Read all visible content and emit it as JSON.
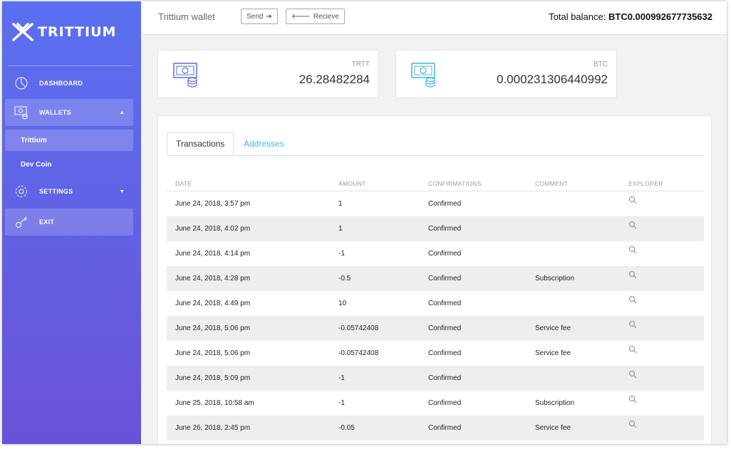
{
  "app": {
    "logo_text": "TRITTIUM"
  },
  "sidebar": {
    "dashboard": "DASHBOARD",
    "wallets": "WALLETS",
    "wallet_items": [
      "Trittium",
      "Dev Coin"
    ],
    "settings": "SETTINGS",
    "exit": "EXIT"
  },
  "header": {
    "title": "Trittium wallet",
    "send_label": "Send",
    "receive_label": "Recieve",
    "balance_label": "Total balance:",
    "balance_value": "BTC0.000992677735632"
  },
  "cards": [
    {
      "label": "TRTT",
      "value": "26.28482284",
      "accent": "#5a6fe8"
    },
    {
      "label": "BTC",
      "value": "0.000231306440992",
      "accent": "#3bb7e6"
    }
  ],
  "tabs": [
    {
      "label": "Transactions",
      "active": true
    },
    {
      "label": "Addresses",
      "active": false
    }
  ],
  "table": {
    "columns": [
      "DATE",
      "AMOUNT",
      "CONFIRMATIONS",
      "COMMENT",
      "EXPLORER"
    ],
    "rows": [
      {
        "date": "June 24, 2018, 3:57 pm",
        "amount": "1",
        "sign": "pos",
        "confirmations": "Confirmed",
        "comment": ""
      },
      {
        "date": "June 24, 2018, 4:02 pm",
        "amount": "1",
        "sign": "pos",
        "confirmations": "Confirmed",
        "comment": ""
      },
      {
        "date": "June 24, 2018, 4:14 pm",
        "amount": "-1",
        "sign": "neg",
        "confirmations": "Confirmed",
        "comment": ""
      },
      {
        "date": "June 24, 2018, 4:28 pm",
        "amount": "-0.5",
        "sign": "neg",
        "confirmations": "Confirmed",
        "comment": "Subscription"
      },
      {
        "date": "June 24, 2018, 4:49 pm",
        "amount": "10",
        "sign": "pos",
        "confirmations": "Confirmed",
        "comment": ""
      },
      {
        "date": "June 24, 2018, 5:06 pm",
        "amount": "-0.05742408",
        "sign": "neg",
        "confirmations": "Confirmed",
        "comment": "Service fee"
      },
      {
        "date": "June 24, 2018, 5:06 pm",
        "amount": "-0.05742408",
        "sign": "neg",
        "confirmations": "Confirmed",
        "comment": "Service fee"
      },
      {
        "date": "June 24, 2018, 5:09 pm",
        "amount": "-1",
        "sign": "neg",
        "confirmations": "Confirmed",
        "comment": ""
      },
      {
        "date": "June 25, 2018, 10:58 am",
        "amount": "-1",
        "sign": "neg",
        "confirmations": "Confirmed",
        "comment": "Subscription"
      },
      {
        "date": "June 26, 2018, 2:45 pm",
        "amount": "-0.05",
        "sign": "neg",
        "confirmations": "Confirmed",
        "comment": "Service fee"
      }
    ],
    "explorer_icon": "search-icon"
  }
}
